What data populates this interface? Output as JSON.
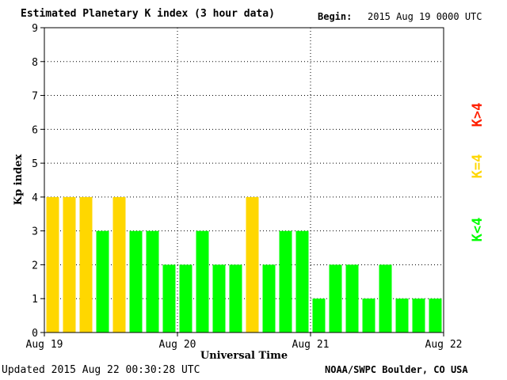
{
  "header": {
    "title": "Estimated Planetary K index (3 hour data)",
    "begin_label": "Begin:",
    "begin_value": "2015 Aug 19 0000 UTC"
  },
  "footer": {
    "updated": "Updated 2015 Aug 22 00:30:28 UTC",
    "credit": "NOAA/SWPC Boulder, CO USA"
  },
  "colors": {
    "below_4": "#00ff00",
    "equal_4": "#ffd700",
    "above_4": "#ff2000",
    "grid": "#000000"
  },
  "chart_data": {
    "type": "bar",
    "title": "Estimated Planetary K index (3 hour data)",
    "xlabel": "Universal Time",
    "ylabel": "Kp index",
    "ylim": [
      0,
      9
    ],
    "yticks": [
      "0",
      "1",
      "2",
      "3",
      "4",
      "5",
      "6",
      "7",
      "8",
      "9"
    ],
    "xticks": [
      "Aug 19",
      "Aug 20",
      "Aug 21",
      "Aug 22"
    ],
    "bars_per_day": 8,
    "values": [
      4,
      4,
      4,
      3,
      4,
      3,
      3,
      2,
      2,
      3,
      2,
      2,
      4,
      2,
      3,
      3,
      1,
      2,
      2,
      1,
      2,
      1,
      1,
      1
    ],
    "legend": [
      {
        "label": "K<4",
        "color": "#00ff00"
      },
      {
        "label": "K=4",
        "color": "#ffd700"
      },
      {
        "label": "K>4",
        "color": "#ff2000"
      }
    ],
    "legend_position": "right",
    "grid": true
  }
}
